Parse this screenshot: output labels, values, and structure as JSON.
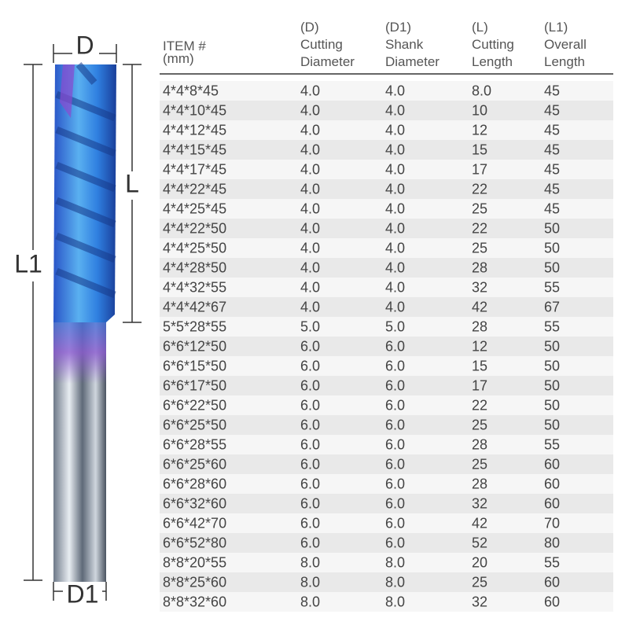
{
  "drawing": {
    "labels": {
      "d": "D",
      "l": "L",
      "l1": "L1",
      "d1": "D1"
    }
  },
  "table": {
    "headers": [
      [
        "ITEM #",
        "(mm)"
      ],
      [
        "(D)",
        "Cutting",
        "Diameter"
      ],
      [
        "(D1)",
        "Shank",
        "Diameter"
      ],
      [
        "(L)",
        "Cutting",
        "Length"
      ],
      [
        "(L1)",
        "Overall",
        "Length"
      ]
    ],
    "rows": [
      [
        "4*4*8*45",
        "4.0",
        "4.0",
        "8.0",
        "45"
      ],
      [
        "4*4*10*45",
        "4.0",
        "4.0",
        "10",
        "45"
      ],
      [
        "4*4*12*45",
        "4.0",
        "4.0",
        "12",
        "45"
      ],
      [
        "4*4*15*45",
        "4.0",
        "4.0",
        "15",
        "45"
      ],
      [
        "4*4*17*45",
        "4.0",
        "4.0",
        "17",
        "45"
      ],
      [
        "4*4*22*45",
        "4.0",
        "4.0",
        "22",
        "45"
      ],
      [
        "4*4*25*45",
        "4.0",
        "4.0",
        "25",
        "45"
      ],
      [
        "4*4*22*50",
        "4.0",
        "4.0",
        "22",
        "50"
      ],
      [
        "4*4*25*50",
        "4.0",
        "4.0",
        "25",
        "50"
      ],
      [
        "4*4*28*50",
        "4.0",
        "4.0",
        "28",
        "50"
      ],
      [
        "4*4*32*55",
        "4.0",
        "4.0",
        "32",
        "55"
      ],
      [
        "4*4*42*67",
        "4.0",
        "4.0",
        "42",
        "67"
      ],
      [
        "5*5*28*55",
        "5.0",
        "5.0",
        "28",
        "55"
      ],
      [
        "6*6*12*50",
        "6.0",
        "6.0",
        "12",
        "50"
      ],
      [
        "6*6*15*50",
        "6.0",
        "6.0",
        "15",
        "50"
      ],
      [
        "6*6*17*50",
        "6.0",
        "6.0",
        "17",
        "50"
      ],
      [
        "6*6*22*50",
        "6.0",
        "6.0",
        "22",
        "50"
      ],
      [
        "6*6*25*50",
        "6.0",
        "6.0",
        "25",
        "50"
      ],
      [
        "6*6*28*55",
        "6.0",
        "6.0",
        "28",
        "55"
      ],
      [
        "6*6*25*60",
        "6.0",
        "6.0",
        "25",
        "60"
      ],
      [
        "6*6*28*60",
        "6.0",
        "6.0",
        "28",
        "60"
      ],
      [
        "6*6*32*60",
        "6.0",
        "6.0",
        "32",
        "60"
      ],
      [
        "6*6*42*70",
        "6.0",
        "6.0",
        "42",
        "70"
      ],
      [
        "6*6*52*80",
        "6.0",
        "6.0",
        "52",
        "80"
      ],
      [
        "8*8*20*55",
        "8.0",
        "8.0",
        "20",
        "55"
      ],
      [
        "8*8*25*60",
        "8.0",
        "8.0",
        "25",
        "60"
      ],
      [
        "8*8*32*60",
        "8.0",
        "8.0",
        "32",
        "60"
      ]
    ]
  }
}
